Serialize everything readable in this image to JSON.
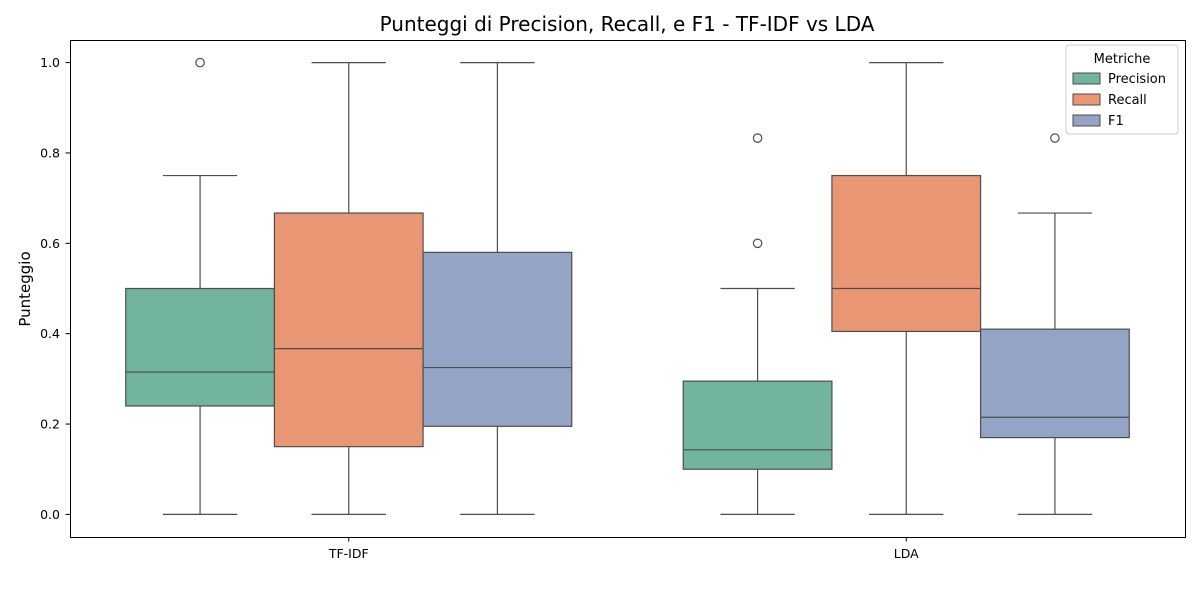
{
  "chart_data": {
    "type": "box",
    "title": "Punteggi di Precision, Recall, e F1 - TF-IDF vs LDA",
    "xlabel": "",
    "ylabel": "Punteggio",
    "ylim": [
      -0.05,
      1.05
    ],
    "yticks": [
      "0.0",
      "0.2",
      "0.4",
      "0.6",
      "0.8",
      "1.0"
    ],
    "categories": [
      "TF-IDF",
      "LDA"
    ],
    "legend": {
      "title": "Metriche",
      "placement": "top-right"
    },
    "grid": false,
    "series": [
      {
        "name": "Precision",
        "color": "#73b49e",
        "boxes": [
          {
            "whisker_low": 0.0,
            "q1": 0.24,
            "median": 0.315,
            "q3": 0.5,
            "whisker_high": 0.75,
            "outliers": [
              1.0
            ]
          },
          {
            "whisker_low": 0.0,
            "q1": 0.1,
            "median": 0.143,
            "q3": 0.295,
            "whisker_high": 0.5,
            "outliers": [
              0.6,
              0.833
            ]
          }
        ]
      },
      {
        "name": "Recall",
        "color": "#e99675",
        "boxes": [
          {
            "whisker_low": 0.0,
            "q1": 0.15,
            "median": 0.367,
            "q3": 0.667,
            "whisker_high": 1.0,
            "outliers": []
          },
          {
            "whisker_low": 0.0,
            "q1": 0.405,
            "median": 0.5,
            "q3": 0.75,
            "whisker_high": 1.0,
            "outliers": []
          }
        ]
      },
      {
        "name": "F1",
        "color": "#94a4c5",
        "boxes": [
          {
            "whisker_low": 0.0,
            "q1": 0.195,
            "median": 0.325,
            "q3": 0.58,
            "whisker_high": 1.0,
            "outliers": []
          },
          {
            "whisker_low": 0.0,
            "q1": 0.17,
            "median": 0.215,
            "q3": 0.41,
            "whisker_high": 0.667,
            "outliers": [
              0.833
            ]
          }
        ]
      }
    ]
  }
}
